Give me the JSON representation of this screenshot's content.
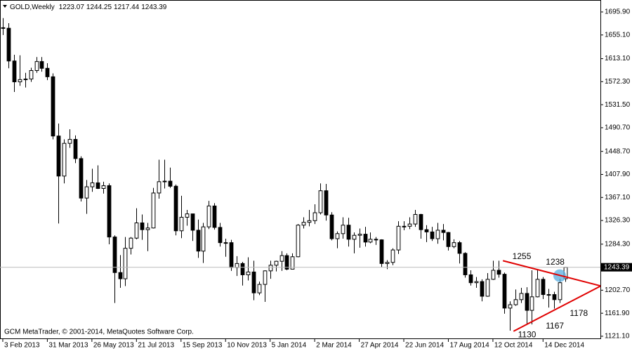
{
  "chart_data": {
    "type": "candlestick",
    "symbol": "GOLD,Weekly",
    "footer": "GCM MetaTrader, © 2001-2014, MetaQuotes Software Corp.",
    "categories": [
      "3 Feb 2013",
      null,
      null,
      null,
      null,
      null,
      null,
      null,
      "31 Mar 2013",
      null,
      null,
      null,
      null,
      null,
      null,
      null,
      "26 May 2013",
      null,
      null,
      null,
      null,
      null,
      null,
      null,
      "21 Jul 2013",
      null,
      null,
      null,
      null,
      null,
      null,
      null,
      "15 Sep 2013",
      null,
      null,
      null,
      null,
      null,
      null,
      null,
      "10 Nov 2013",
      null,
      null,
      null,
      null,
      null,
      null,
      null,
      "5 Jan 2014",
      null,
      null,
      null,
      null,
      null,
      null,
      null,
      "2 Mar 2014",
      null,
      null,
      null,
      null,
      null,
      null,
      null,
      "27 Apr 2014",
      null,
      null,
      null,
      null,
      null,
      null,
      null,
      "22 Jun 2014",
      null,
      null,
      null,
      null,
      null,
      null,
      null,
      "17 Aug 2014",
      null,
      null,
      null,
      null,
      null,
      null,
      null,
      "12 Oct 2014",
      null,
      null,
      null,
      null,
      null,
      null,
      null,
      null,
      "14 Dec 2014",
      null,
      null,
      null,
      null
    ],
    "candles": [
      [
        1668,
        1685,
        1655,
        1667
      ],
      [
        1667,
        1676,
        1596,
        1609
      ],
      [
        1609,
        1620,
        1554,
        1572
      ],
      [
        1572,
        1619,
        1565,
        1576
      ],
      [
        1576,
        1588,
        1562,
        1577
      ],
      [
        1577,
        1597,
        1572,
        1592
      ],
      [
        1592,
        1616,
        1588,
        1608
      ],
      [
        1608,
        1616,
        1590,
        1596
      ],
      [
        1596,
        1605,
        1575,
        1581
      ],
      [
        1581,
        1587,
        1470,
        1476
      ],
      [
        1476,
        1498,
        1321,
        1405
      ],
      [
        1405,
        1470,
        1392,
        1463
      ],
      [
        1463,
        1488,
        1455,
        1470
      ],
      [
        1470,
        1477,
        1428,
        1436
      ],
      [
        1436,
        1440,
        1360,
        1366
      ],
      [
        1366,
        1398,
        1338,
        1386
      ],
      [
        1386,
        1418,
        1377,
        1393
      ],
      [
        1393,
        1424,
        1382,
        1383
      ],
      [
        1383,
        1395,
        1374,
        1388
      ],
      [
        1388,
        1392,
        1284,
        1297
      ],
      [
        1297,
        1300,
        1180,
        1234
      ],
      [
        1234,
        1265,
        1207,
        1223
      ],
      [
        1223,
        1297,
        1210,
        1277
      ],
      [
        1277,
        1297,
        1266,
        1295
      ],
      [
        1295,
        1348,
        1293,
        1322
      ],
      [
        1322,
        1337,
        1292,
        1310
      ],
      [
        1310,
        1322,
        1272,
        1313
      ],
      [
        1313,
        1384,
        1312,
        1375
      ],
      [
        1375,
        1434,
        1365,
        1395
      ],
      [
        1395,
        1434,
        1383,
        1396
      ],
      [
        1396,
        1420,
        1384,
        1387
      ],
      [
        1387,
        1390,
        1300,
        1308
      ],
      [
        1308,
        1370,
        1295,
        1332
      ],
      [
        1332,
        1345,
        1317,
        1338
      ],
      [
        1338,
        1338,
        1290,
        1309
      ],
      [
        1309,
        1328,
        1260,
        1272
      ],
      [
        1272,
        1322,
        1251,
        1315
      ],
      [
        1315,
        1361,
        1311,
        1352
      ],
      [
        1352,
        1357,
        1310,
        1314
      ],
      [
        1314,
        1322,
        1280,
        1287
      ],
      [
        1287,
        1294,
        1262,
        1287
      ],
      [
        1287,
        1292,
        1237,
        1243
      ],
      [
        1243,
        1263,
        1228,
        1250
      ],
      [
        1250,
        1253,
        1211,
        1230
      ],
      [
        1230,
        1261,
        1220,
        1235
      ],
      [
        1235,
        1255,
        1185,
        1198
      ],
      [
        1198,
        1218,
        1194,
        1213
      ],
      [
        1213,
        1238,
        1182,
        1237
      ],
      [
        1237,
        1255,
        1223,
        1247
      ],
      [
        1247,
        1255,
        1236,
        1254
      ],
      [
        1254,
        1272,
        1237,
        1264
      ],
      [
        1264,
        1268,
        1238,
        1240
      ],
      [
        1240,
        1268,
        1240,
        1262
      ],
      [
        1262,
        1320,
        1261,
        1318
      ],
      [
        1318,
        1332,
        1312,
        1323
      ],
      [
        1323,
        1345,
        1316,
        1326
      ],
      [
        1326,
        1355,
        1320,
        1340
      ],
      [
        1340,
        1392,
        1337,
        1379
      ],
      [
        1379,
        1391,
        1326,
        1336
      ],
      [
        1336,
        1341,
        1291,
        1294
      ],
      [
        1294,
        1307,
        1277,
        1303
      ],
      [
        1303,
        1332,
        1294,
        1318
      ],
      [
        1318,
        1331,
        1280,
        1293
      ],
      [
        1293,
        1305,
        1268,
        1300
      ],
      [
        1300,
        1312,
        1278,
        1302
      ],
      [
        1302,
        1315,
        1280,
        1288
      ],
      [
        1288,
        1305,
        1286,
        1293
      ],
      [
        1293,
        1297,
        1283,
        1292
      ],
      [
        1292,
        1293,
        1244,
        1250
      ],
      [
        1250,
        1256,
        1240,
        1252
      ],
      [
        1252,
        1277,
        1247,
        1274
      ],
      [
        1274,
        1325,
        1267,
        1316
      ],
      [
        1316,
        1325,
        1309,
        1316
      ],
      [
        1316,
        1332,
        1311,
        1320
      ],
      [
        1320,
        1345,
        1315,
        1337
      ],
      [
        1337,
        1338,
        1294,
        1310
      ],
      [
        1310,
        1318,
        1288,
        1306
      ],
      [
        1306,
        1315,
        1290,
        1294
      ],
      [
        1294,
        1322,
        1285,
        1309
      ],
      [
        1309,
        1320,
        1291,
        1305
      ],
      [
        1305,
        1306,
        1273,
        1280
      ],
      [
        1280,
        1293,
        1277,
        1287
      ],
      [
        1287,
        1290,
        1250,
        1268
      ],
      [
        1268,
        1270,
        1225,
        1230
      ],
      [
        1230,
        1238,
        1211,
        1216
      ],
      [
        1216,
        1226,
        1207,
        1218
      ],
      [
        1218,
        1222,
        1183,
        1192
      ],
      [
        1192,
        1233,
        1191,
        1222
      ],
      [
        1222,
        1255,
        1221,
        1238
      ],
      [
        1238,
        1255,
        1225,
        1231
      ],
      [
        1231,
        1234,
        1161,
        1171
      ],
      [
        1171,
        1183,
        1131,
        1177
      ],
      [
        1177,
        1204,
        1175,
        1186
      ],
      [
        1186,
        1207,
        1180,
        1197
      ],
      [
        1197,
        1208,
        1141,
        1167
      ],
      [
        1167,
        1238,
        1142,
        1191
      ],
      [
        1191,
        1238,
        1190,
        1222
      ],
      [
        1222,
        1226,
        1187,
        1195
      ],
      [
        1195,
        1205,
        1172,
        1195
      ],
      [
        1195,
        1200,
        1170,
        1186
      ],
      [
        1186,
        1223,
        1180,
        1216
      ],
      [
        1223.07,
        1244.25,
        1217.44,
        1243.39
      ]
    ],
    "xlim": [
      -0.5,
      107.3
    ],
    "ylim": [
      1116.1,
      1717.05
    ],
    "yticks": [
      {
        "value": 1695.9,
        "label": "1695.90"
      },
      {
        "value": 1655.1,
        "label": "1655.10"
      },
      {
        "value": 1613.1,
        "label": "1613.10"
      },
      {
        "value": 1572.3,
        "label": "1572.30"
      },
      {
        "value": 1531.5,
        "label": "1531.50"
      },
      {
        "value": 1490.7,
        "label": "1490.70"
      },
      {
        "value": 1448.7,
        "label": "1448.70"
      },
      {
        "value": 1407.9,
        "label": "1407.90"
      },
      {
        "value": 1367.1,
        "label": "1367.10"
      },
      {
        "value": 1326.3,
        "label": "1326.30"
      },
      {
        "value": 1284.3,
        "label": "1284.30"
      },
      {
        "value": 1202.7,
        "label": "1202.70"
      },
      {
        "value": 1161.9,
        "label": "1161.90"
      },
      {
        "value": 1121.1,
        "label": "1121.10"
      }
    ],
    "trendlines": [
      {
        "color": "#e00000",
        "x": [
          89.8,
          107.3
        ],
        "y": [
          1255,
          1210.4
        ]
      },
      {
        "color": "#e00000",
        "x": [
          91.7,
          107.3
        ],
        "y": [
          1130,
          1209.9
        ]
      }
    ],
    "annotations": [
      {
        "text": "1255",
        "x": 91.5,
        "y": 1262
      },
      {
        "text": "1238",
        "x": 97.5,
        "y": 1252
      },
      {
        "text": "1130",
        "x": 92.5,
        "y": 1123
      },
      {
        "text": "1167",
        "x": 97.5,
        "y": 1139
      },
      {
        "text": "1178",
        "x": 101.8,
        "y": 1161
      }
    ]
  }
}
